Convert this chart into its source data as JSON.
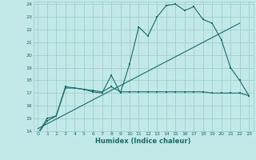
{
  "xlabel": "Humidex (Indice chaleur)",
  "bg_color": "#c2e8e8",
  "grid_color": "#9ecece",
  "line_color": "#1a6b6b",
  "xlim": [
    -0.5,
    23.5
  ],
  "ylim": [
    14,
    24.2
  ],
  "yticks": [
    14,
    15,
    16,
    17,
    18,
    19,
    20,
    21,
    22,
    23,
    24
  ],
  "xticks": [
    0,
    1,
    2,
    3,
    4,
    5,
    6,
    7,
    8,
    9,
    10,
    11,
    12,
    13,
    14,
    15,
    16,
    17,
    18,
    19,
    20,
    21,
    22,
    23
  ],
  "line1_x": [
    0,
    1,
    2,
    3,
    4,
    5,
    6,
    7,
    8,
    9,
    10,
    11,
    12,
    13,
    14,
    15,
    16,
    17,
    18,
    19,
    20,
    21,
    22,
    23
  ],
  "line1_y": [
    13.8,
    15.0,
    15.2,
    17.5,
    17.4,
    17.3,
    17.1,
    17.0,
    18.4,
    17.0,
    19.3,
    22.2,
    21.5,
    23.0,
    23.9,
    24.0,
    23.5,
    23.8,
    22.8,
    22.5,
    21.2,
    19.0,
    18.0,
    16.8
  ],
  "line2_x": [
    0,
    1,
    2,
    3,
    4,
    5,
    6,
    7,
    8,
    9,
    10,
    11,
    12,
    13,
    14,
    15,
    16,
    17,
    18,
    19,
    20,
    21,
    22,
    23
  ],
  "line2_y": [
    13.8,
    14.8,
    15.2,
    17.4,
    17.4,
    17.3,
    17.2,
    17.1,
    17.5,
    17.1,
    17.1,
    17.1,
    17.1,
    17.1,
    17.1,
    17.1,
    17.1,
    17.1,
    17.1,
    17.0,
    17.0,
    17.0,
    17.0,
    16.8
  ],
  "line3_x": [
    0,
    22
  ],
  "line3_y": [
    14.2,
    22.5
  ]
}
